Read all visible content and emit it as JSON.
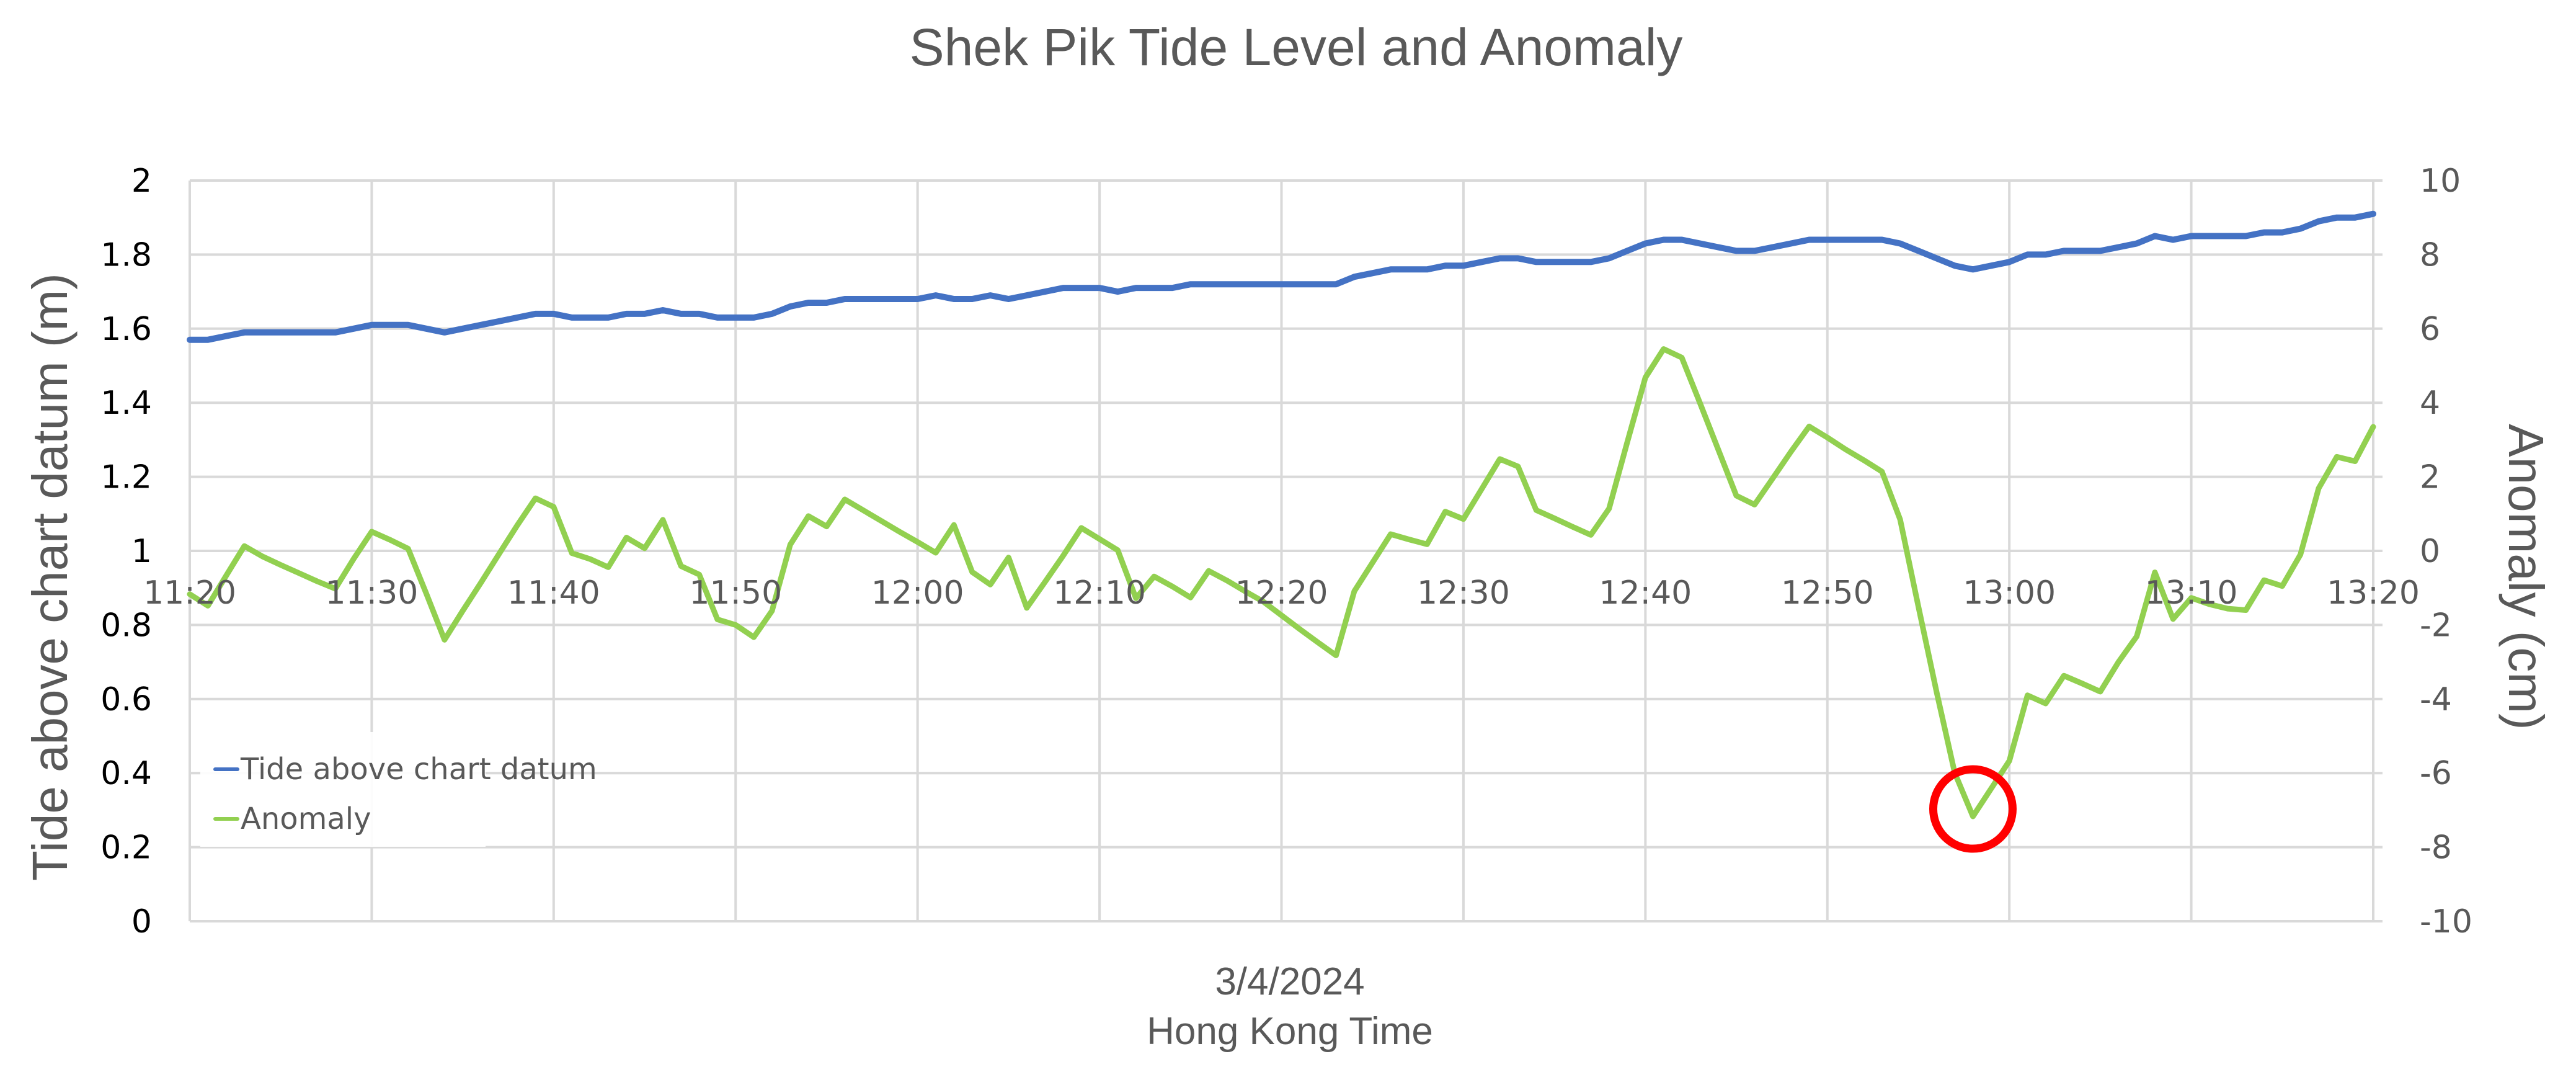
{
  "chart_data": {
    "type": "line",
    "title": "Shek Pik Tide Level and Anomaly",
    "xlabel": "3/4/2024\nHong Kong Time",
    "xlabel_lines": [
      "3/4/2024",
      "Hong Kong Time"
    ],
    "ylabel": "Tide above chart datum (m)",
    "y2label": "Anomaly (cm)",
    "ylim": [
      0,
      2
    ],
    "y2lim": [
      -10,
      10
    ],
    "yticks": [
      "0",
      "0.2",
      "0.4",
      "0.6",
      "0.8",
      "1",
      "1.2",
      "1.4",
      "1.6",
      "1.8",
      "2"
    ],
    "y2ticks": [
      "-10",
      "-8",
      "-6",
      "-4",
      "-2",
      "0",
      "2",
      "4",
      "6",
      "8",
      "10"
    ],
    "xticks": [
      "11:20",
      "11:30",
      "11:40",
      "11:50",
      "12:00",
      "12:10",
      "12:20",
      "12:30",
      "12:40",
      "12:50",
      "13:00",
      "13:10",
      "13:20"
    ],
    "x_start": "11:20",
    "x_end": "13:20",
    "x_interval_minutes": 1,
    "grid": true,
    "legend_position": "lower-left inside plot",
    "series": [
      {
        "name": "Tide above chart datum",
        "axis": "left",
        "color": "#4472C4",
        "values": [
          1.57,
          1.57,
          1.58,
          1.59,
          1.59,
          1.59,
          1.59,
          1.59,
          1.59,
          1.6,
          1.61,
          1.61,
          1.61,
          1.6,
          1.59,
          1.6,
          1.61,
          1.62,
          1.63,
          1.64,
          1.64,
          1.63,
          1.63,
          1.63,
          1.64,
          1.64,
          1.65,
          1.64,
          1.64,
          1.63,
          1.63,
          1.63,
          1.64,
          1.66,
          1.67,
          1.67,
          1.68,
          1.68,
          1.68,
          1.68,
          1.68,
          1.69,
          1.68,
          1.68,
          1.69,
          1.68,
          1.69,
          1.7,
          1.71,
          1.71,
          1.71,
          1.7,
          1.71,
          1.71,
          1.71,
          1.72,
          1.72,
          1.72,
          1.72,
          1.72,
          1.72,
          1.72,
          1.72,
          1.72,
          1.74,
          1.75,
          1.76,
          1.76,
          1.76,
          1.77,
          1.77,
          1.78,
          1.79,
          1.79,
          1.78,
          1.78,
          1.78,
          1.78,
          1.79,
          1.81,
          1.83,
          1.84,
          1.84,
          1.83,
          1.82,
          1.81,
          1.81,
          1.82,
          1.83,
          1.84,
          1.84,
          1.84,
          1.84,
          1.84,
          1.83,
          1.81,
          1.79,
          1.77,
          1.76,
          1.77,
          1.78,
          1.8,
          1.8,
          1.81,
          1.81,
          1.81,
          1.82,
          1.83,
          1.85,
          1.84,
          1.85,
          1.85,
          1.85,
          1.85,
          1.86,
          1.86,
          1.87,
          1.89,
          1.9,
          1.9,
          1.91
        ]
      },
      {
        "name": "Anomaly",
        "axis": "right",
        "color": "#92D050",
        "values": [
          -1.17,
          -1.48,
          -0.67,
          0.13,
          -0.15,
          -0.38,
          -0.6,
          -0.82,
          -1.02,
          -0.22,
          0.52,
          0.3,
          0.06,
          -1.15,
          -2.4,
          -1.62,
          -0.86,
          -0.08,
          0.69,
          1.42,
          1.19,
          -0.06,
          -0.22,
          -0.44,
          0.36,
          0.07,
          0.84,
          -0.41,
          -0.64,
          -1.85,
          -2.0,
          -2.33,
          -1.62,
          0.17,
          0.94,
          0.66,
          1.39,
          1.1,
          0.81,
          0.52,
          0.24,
          -0.05,
          0.7,
          -0.57,
          -0.91,
          -0.18,
          -1.54,
          -0.84,
          -0.13,
          0.62,
          0.32,
          0.02,
          -1.28,
          -0.69,
          -0.96,
          -1.26,
          -0.54,
          -0.8,
          -1.09,
          -1.37,
          -1.74,
          -2.11,
          -2.47,
          -2.82,
          -1.09,
          -0.32,
          0.45,
          0.31,
          0.18,
          1.06,
          0.86,
          1.67,
          2.48,
          2.28,
          1.1,
          0.88,
          0.65,
          0.43,
          1.14,
          2.93,
          4.68,
          5.45,
          5.22,
          3.99,
          2.74,
          1.49,
          1.25,
          1.96,
          2.68,
          3.36,
          3.06,
          2.74,
          2.45,
          2.14,
          0.85,
          -1.5,
          -3.8,
          -5.99,
          -7.17,
          -6.42,
          -5.67,
          -3.9,
          -4.12,
          -3.37,
          -3.58,
          -3.8,
          -3.0,
          -2.31,
          -0.58,
          -1.84,
          -1.27,
          -1.44,
          -1.56,
          -1.6,
          -0.79,
          -0.95,
          -0.1,
          1.69,
          2.54,
          2.42,
          3.35
        ]
      }
    ],
    "annotations": [
      {
        "type": "circle",
        "color": "#FF0000",
        "target_time": "12:58",
        "target_value_cm": -7.17,
        "description": "red circle highlighting anomaly minimum"
      }
    ]
  },
  "legend": {
    "items": [
      {
        "label": "Tide above chart datum",
        "color": "#4472C4"
      },
      {
        "label": "Anomaly",
        "color": "#92D050"
      }
    ]
  }
}
